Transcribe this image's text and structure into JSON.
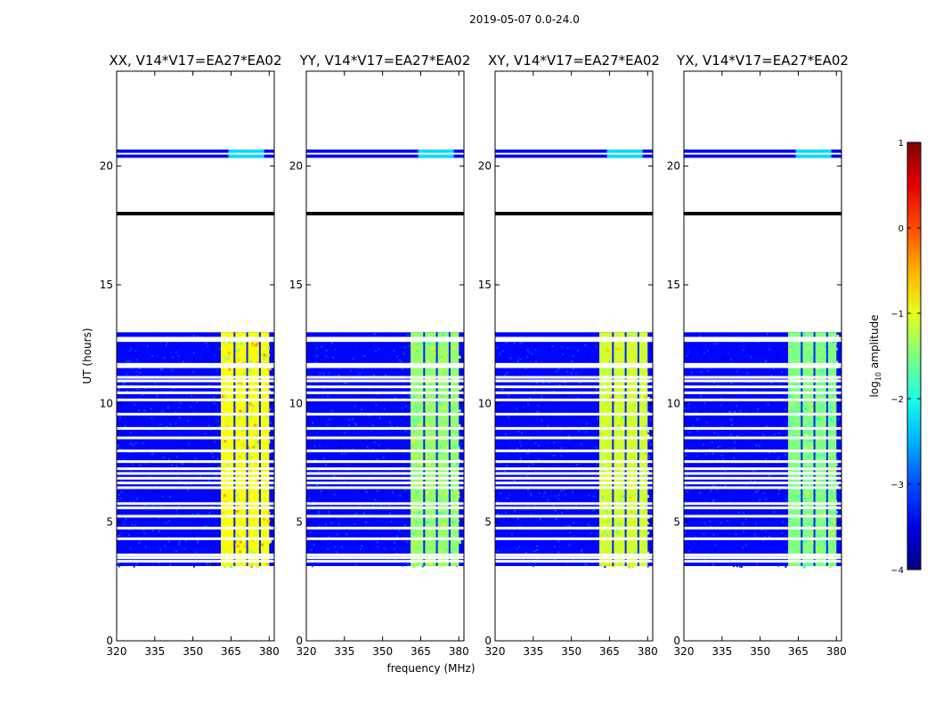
{
  "figure": {
    "suptitle": "2019-05-07 0.0-24.0"
  },
  "chart_data": {
    "type": "heatmap",
    "shared_xlabel": "frequency (MHz)",
    "ylabel": "UT (hours)",
    "xlim": [
      320,
      382
    ],
    "ylim": [
      0,
      24
    ],
    "xticks": [
      320,
      335,
      350,
      365,
      380
    ],
    "yticks": [
      0,
      5,
      10,
      15,
      20
    ],
    "xtick_labels": [
      "320",
      "335",
      "350",
      "365",
      "380"
    ],
    "ytick_labels": [
      "0",
      "5",
      "10",
      "15",
      "20"
    ],
    "panels": [
      {
        "title": "XX, V14*V17=EA27*EA02",
        "strong_level": 0.62
      },
      {
        "title": "YY, V14*V17=EA27*EA02",
        "strong_level": 0.52
      },
      {
        "title": "XY, V14*V17=EA27*EA02",
        "strong_level": 0.58
      },
      {
        "title": "YX, V14*V17=EA27*EA02",
        "strong_level": 0.5
      }
    ],
    "data_block_hours": [
      3.15,
      13.0
    ],
    "upper_block_hours": [
      20.35,
      20.7
    ],
    "flag_line_hours": 18.0,
    "strong_band_mhz": [
      361,
      380
    ],
    "weak_band_mhz": [
      364,
      378
    ],
    "gap_channels_mhz": [
      366,
      371,
      376
    ],
    "flagged_rows_hours": [
      3.35,
      3.5,
      3.62,
      4.3,
      4.75,
      5.25,
      5.6,
      5.78,
      6.45,
      6.65,
      6.85,
      7.05,
      7.25,
      7.55,
      8.0,
      8.55,
      8.95,
      9.55,
      10.15,
      10.45,
      10.7,
      10.95,
      11.1,
      11.55,
      11.65,
      12.65,
      12.75
    ],
    "colorbar": {
      "label_prefix": "log",
      "label_sub": "10",
      "label_suffix": " amplitude",
      "range": [
        -4,
        1
      ],
      "ticks": [
        -4,
        -3,
        -2,
        -1,
        0,
        1
      ],
      "tick_labels": [
        "−4",
        "−3",
        "−2",
        "−1",
        "0",
        "1"
      ],
      "colormap": "jet"
    }
  }
}
